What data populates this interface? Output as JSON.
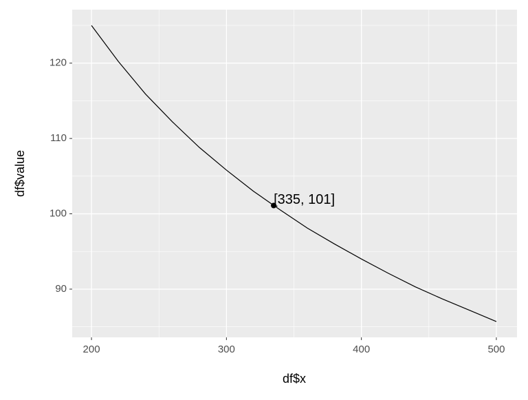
{
  "chart_data": {
    "type": "line",
    "x_label": "df$x",
    "y_label": "df$value",
    "x": [
      200,
      220,
      240,
      260,
      280,
      300,
      320,
      340,
      360,
      380,
      400,
      420,
      440,
      460,
      480,
      500
    ],
    "series": [
      {
        "color": "#000000",
        "values": [
          125,
          120.2,
          115.9,
          112.2,
          108.8,
          105.8,
          103.0,
          100.5,
          98.1,
          96.0,
          94.0,
          92.1,
          90.3,
          88.7,
          87.2,
          85.7
        ]
      }
    ],
    "annotation": {
      "x": 335,
      "y": 101.1,
      "label": "[335, 101]"
    },
    "xlim": [
      185.7,
      515.3
    ],
    "ylim": [
      83.6,
      127.1
    ],
    "xticks": [
      200,
      300,
      400,
      500
    ],
    "yticks": [
      90,
      100,
      110,
      120
    ],
    "minor_xticks": [
      250,
      350,
      450
    ],
    "minor_yticks": [
      85,
      95,
      105,
      115,
      125
    ],
    "grid": true,
    "panel_color": "#ebebeb"
  }
}
